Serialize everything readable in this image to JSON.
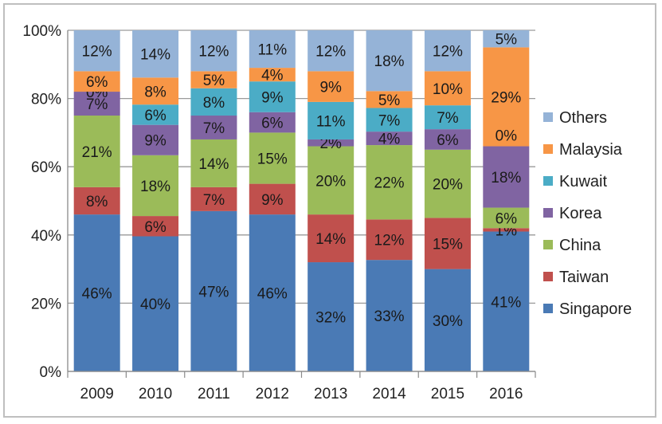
{
  "chart_data": {
    "type": "bar",
    "stacked": true,
    "percent_stacked": true,
    "categories": [
      "2009",
      "2010",
      "2011",
      "2012",
      "2013",
      "2014",
      "2015",
      "2016"
    ],
    "series": [
      {
        "name": "Singapore",
        "color": "#4a7ab5",
        "values": [
          46,
          40,
          47,
          46,
          32,
          33,
          30,
          41
        ],
        "labels": [
          "46%",
          "40%",
          "47%",
          "46%",
          "32%",
          "33%",
          "30%",
          "41%"
        ]
      },
      {
        "name": "Taiwan",
        "color": "#c0504d",
        "values": [
          8,
          6,
          7,
          9,
          14,
          12,
          15,
          1
        ],
        "labels": [
          "8%",
          "6%",
          "7%",
          "9%",
          "14%",
          "12%",
          "15%",
          "1%"
        ]
      },
      {
        "name": "China",
        "color": "#9bbb59",
        "values": [
          21,
          18,
          14,
          15,
          20,
          22,
          20,
          6
        ],
        "labels": [
          "21%",
          "18%",
          "14%",
          "15%",
          "20%",
          "22%",
          "20%",
          "6%"
        ]
      },
      {
        "name": "Korea",
        "color": "#8064a2",
        "values": [
          7,
          9,
          7,
          6,
          2,
          4,
          6,
          18
        ],
        "labels": [
          "7%",
          "9%",
          "7%",
          "6%",
          "2%",
          "4%",
          "6%",
          "18%"
        ]
      },
      {
        "name": "Kuwait",
        "color": "#4bacc6",
        "values": [
          0,
          6,
          8,
          9,
          11,
          7,
          7,
          0
        ],
        "labels": [
          "0%",
          "6%",
          "8%",
          "9%",
          "11%",
          "7%",
          "7%",
          ""
        ]
      },
      {
        "name": "Malaysia",
        "color": "#f79646",
        "values": [
          6,
          8,
          5,
          4,
          9,
          5,
          10,
          29
        ],
        "labels": [
          "6%",
          "8%",
          "5%",
          "4%",
          "9%",
          "5%",
          "10%",
          "29%"
        ]
      },
      {
        "name": "Others",
        "color": "#95b3d7",
        "values": [
          12,
          14,
          12,
          11,
          12,
          18,
          12,
          5
        ],
        "labels": [
          "12%",
          "14%",
          "12%",
          "11%",
          "12%",
          "18%",
          "12%",
          "5%"
        ]
      }
    ],
    "extra_labels": [
      {
        "category": "2016",
        "series": "Malaysia",
        "position": "base",
        "text": "0%"
      }
    ],
    "yticks": [
      "0%",
      "20%",
      "40%",
      "60%",
      "80%",
      "100%"
    ],
    "ylim": [
      0,
      100
    ],
    "title": "",
    "xlabel": "",
    "ylabel": "",
    "grid": true,
    "legend_position": "right",
    "legend_order": [
      "Others",
      "Malaysia",
      "Kuwait",
      "Korea",
      "China",
      "Taiwan",
      "Singapore"
    ]
  }
}
